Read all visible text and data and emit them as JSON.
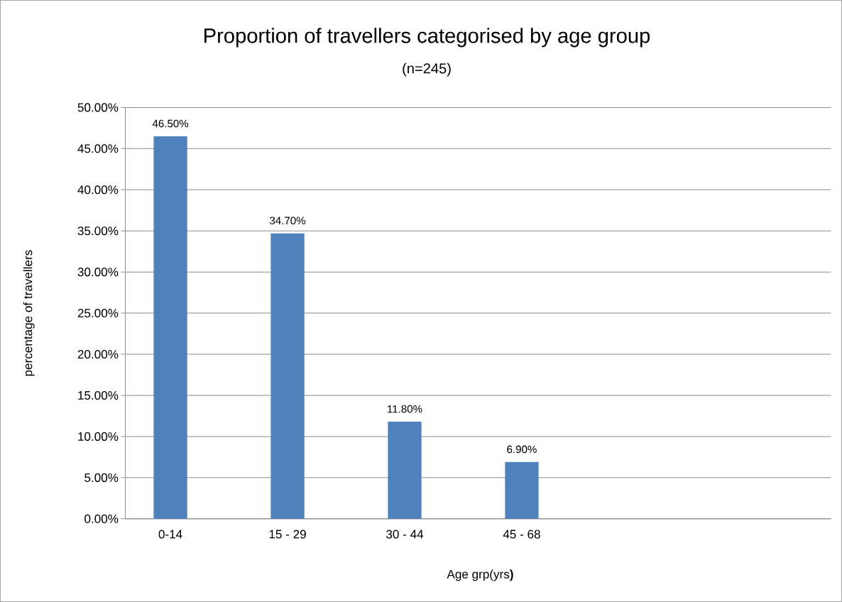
{
  "chart_data": {
    "type": "bar",
    "title": "Proportion of travellers categorised by age group",
    "subtitle": "(n=245)",
    "xlabel": "Age grp(yrs**)**",
    "ylabel": "percentage of travellers",
    "categories": [
      "0-14",
      "15 - 29",
      "30 - 44",
      "45 - 68",
      null,
      null
    ],
    "values": [
      46.5,
      34.7,
      11.8,
      6.9,
      null,
      null
    ],
    "value_labels": [
      "46.50%",
      "34.70%",
      "11.80%",
      "6.90%",
      null,
      null
    ],
    "color": "#4f81bd",
    "ylim": [
      0,
      50
    ],
    "yticks": [
      {
        "value": 0,
        "label": "0.00%"
      },
      {
        "value": 5,
        "label": "5.00%"
      },
      {
        "value": 10,
        "label": "10.00%"
      },
      {
        "value": 15,
        "label": "15.00%"
      },
      {
        "value": 20,
        "label": "20.00%"
      },
      {
        "value": 25,
        "label": "25.00%"
      },
      {
        "value": 30,
        "label": "30.00%"
      },
      {
        "value": 35,
        "label": "35.00%"
      },
      {
        "value": 40,
        "label": "40.00%"
      },
      {
        "value": 45,
        "label": "45.00%"
      },
      {
        "value": 50,
        "label": "50.00%"
      }
    ],
    "grid": "y"
  }
}
